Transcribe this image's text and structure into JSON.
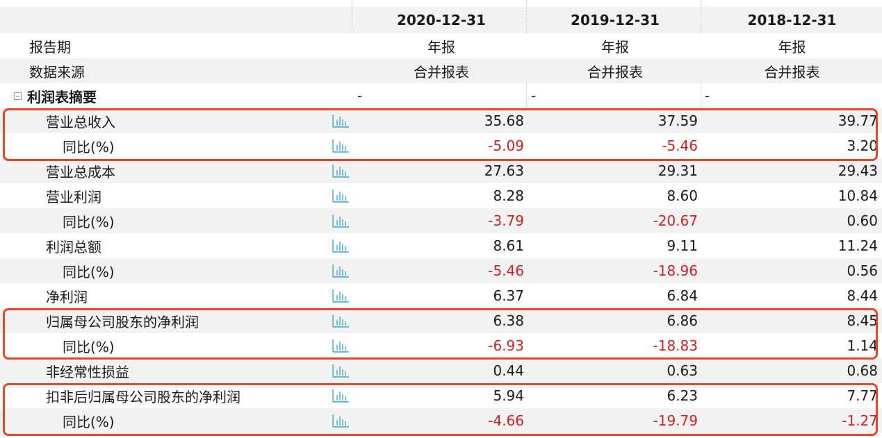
{
  "header": {
    "columns": [
      "2020-12-31",
      "2019-12-31",
      "2018-12-31"
    ]
  },
  "meta_rows": [
    {
      "label": "报告期",
      "values": [
        "年报",
        "年报",
        "年报"
      ]
    },
    {
      "label": "数据来源",
      "values": [
        "合并报表",
        "合并报表",
        "合并报表"
      ]
    }
  ],
  "section": {
    "label": "利润表摘要",
    "values": [
      "-",
      "-",
      "-"
    ]
  },
  "rows": [
    {
      "label": "营业总收入",
      "indent": 1,
      "values": [
        "35.68",
        "37.59",
        "39.77"
      ]
    },
    {
      "label": "同比(%)",
      "indent": 2,
      "values": [
        "-5.09",
        "-5.46",
        "3.20"
      ]
    },
    {
      "label": "营业总成本",
      "indent": 1,
      "values": [
        "27.63",
        "29.31",
        "29.43"
      ]
    },
    {
      "label": "营业利润",
      "indent": 1,
      "values": [
        "8.28",
        "8.60",
        "10.84"
      ]
    },
    {
      "label": "同比(%)",
      "indent": 2,
      "values": [
        "-3.79",
        "-20.67",
        "0.60"
      ]
    },
    {
      "label": "利润总额",
      "indent": 1,
      "values": [
        "8.61",
        "9.11",
        "11.24"
      ]
    },
    {
      "label": "同比(%)",
      "indent": 2,
      "values": [
        "-5.46",
        "-18.96",
        "0.56"
      ]
    },
    {
      "label": "净利润",
      "indent": 1,
      "values": [
        "6.37",
        "6.84",
        "8.44"
      ]
    },
    {
      "label": "归属母公司股东的净利润",
      "indent": 1,
      "values": [
        "6.38",
        "6.86",
        "8.45"
      ]
    },
    {
      "label": "同比(%)",
      "indent": 2,
      "values": [
        "-6.93",
        "-18.83",
        "1.14"
      ]
    },
    {
      "label": "非经常性损益",
      "indent": 1,
      "values": [
        "0.44",
        "0.63",
        "0.68"
      ]
    },
    {
      "label": "扣非后归属母公司股东的净利润",
      "indent": 1,
      "values": [
        "5.94",
        "6.23",
        "7.77"
      ]
    },
    {
      "label": "同比(%)",
      "indent": 2,
      "values": [
        "-4.66",
        "-19.79",
        "-1.27"
      ]
    }
  ],
  "colors": {
    "negative": "#cc2222",
    "highlight": "#e5472d",
    "chart_icon": "#3fa7c9",
    "stripe": "#f2f2f2"
  },
  "icons": {
    "row_chart": "bar-chart-icon",
    "section_toggle": "collapse-icon"
  }
}
